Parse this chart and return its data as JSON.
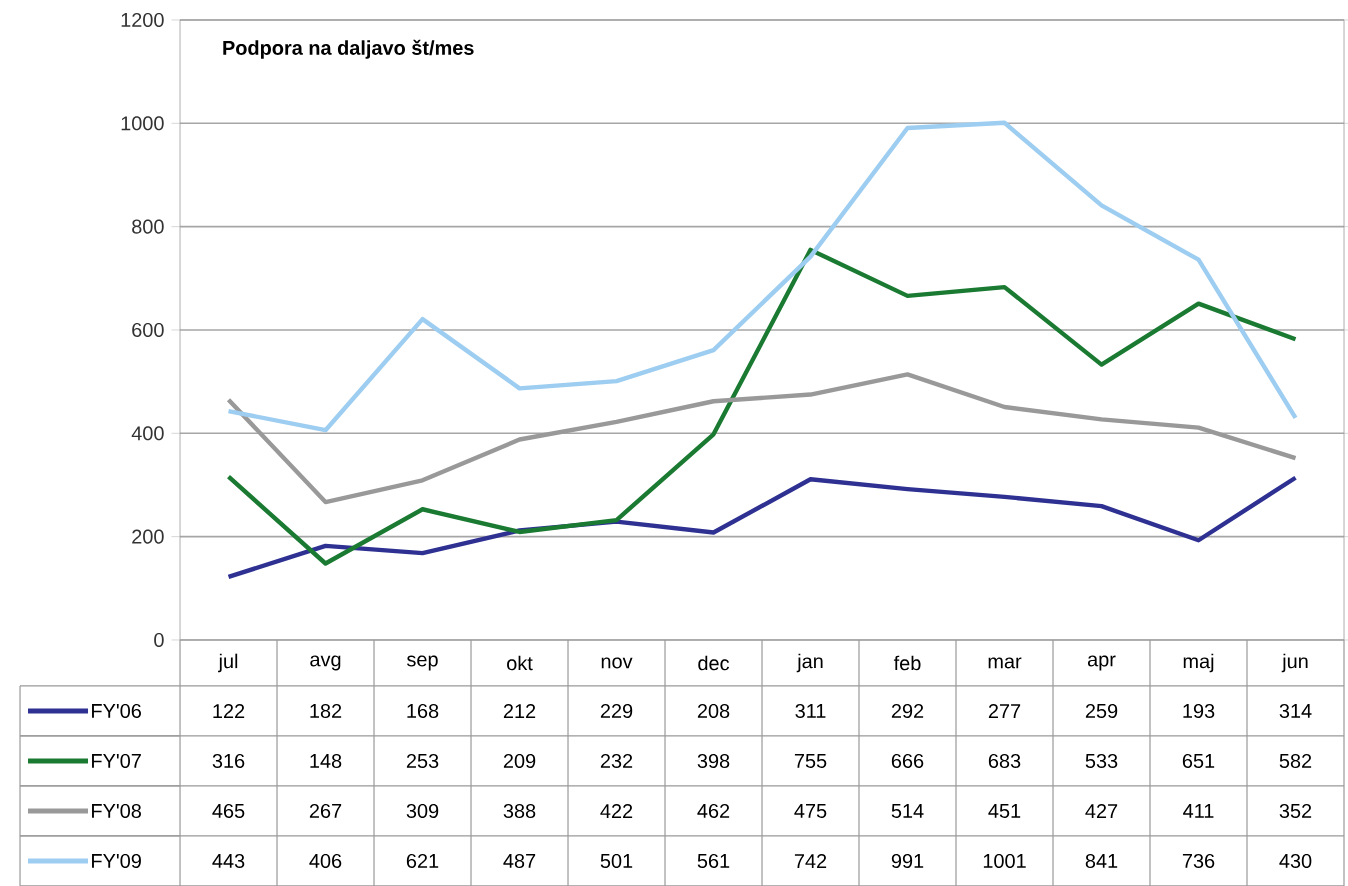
{
  "chart_data": {
    "type": "line",
    "title": "Podpora na daljavo št/mes",
    "categories": [
      "jul",
      "avg",
      "sep",
      "okt",
      "nov",
      "dec",
      "jan",
      "feb",
      "mar",
      "apr",
      "maj",
      "jun"
    ],
    "series": [
      {
        "name": "FY'06",
        "color": "#2e3192",
        "values": [
          122,
          182,
          168,
          212,
          229,
          208,
          311,
          292,
          277,
          259,
          193,
          314
        ]
      },
      {
        "name": "FY'07",
        "color": "#1a7a32",
        "values": [
          316,
          148,
          253,
          209,
          232,
          398,
          755,
          666,
          683,
          533,
          651,
          582
        ]
      },
      {
        "name": "FY'08",
        "color": "#999999",
        "values": [
          465,
          267,
          309,
          388,
          422,
          462,
          475,
          514,
          451,
          427,
          411,
          352
        ]
      },
      {
        "name": "FY'09",
        "color": "#9dcdf0",
        "values": [
          443,
          406,
          621,
          487,
          501,
          561,
          742,
          991,
          1001,
          841,
          736,
          430
        ]
      }
    ],
    "ylim": [
      0,
      1200
    ],
    "yticks": [
      0,
      200,
      400,
      600,
      800,
      1000,
      1200
    ],
    "grid": "y",
    "legend": "bottom",
    "data_labels": true,
    "marker": "none",
    "line_style": "solid"
  }
}
